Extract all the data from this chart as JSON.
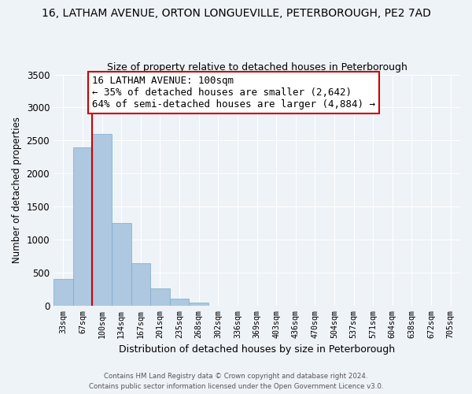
{
  "title": "16, LATHAM AVENUE, ORTON LONGUEVILLE, PETERBOROUGH, PE2 7AD",
  "subtitle": "Size of property relative to detached houses in Peterborough",
  "xlabel": "Distribution of detached houses by size in Peterborough",
  "ylabel": "Number of detached properties",
  "categories": [
    "33sqm",
    "67sqm",
    "100sqm",
    "134sqm",
    "167sqm",
    "201sqm",
    "235sqm",
    "268sqm",
    "302sqm",
    "336sqm",
    "369sqm",
    "403sqm",
    "436sqm",
    "470sqm",
    "504sqm",
    "537sqm",
    "571sqm",
    "604sqm",
    "638sqm",
    "672sqm",
    "705sqm"
  ],
  "values": [
    400,
    2400,
    2600,
    1250,
    640,
    260,
    105,
    50,
    0,
    0,
    0,
    0,
    0,
    0,
    0,
    0,
    0,
    0,
    0,
    0,
    0
  ],
  "bar_color": "#adc8e0",
  "bar_edge_color": "#7aaac8",
  "vline_color": "#cc0000",
  "vline_x_index": 2,
  "annotation_title": "16 LATHAM AVENUE: 100sqm",
  "annotation_line1": "← 35% of detached houses are smaller (2,642)",
  "annotation_line2": "64% of semi-detached houses are larger (4,884) →",
  "annotation_box_color": "#ffffff",
  "annotation_box_edge": "#cc0000",
  "ylim": [
    0,
    3500
  ],
  "yticks": [
    0,
    500,
    1000,
    1500,
    2000,
    2500,
    3000,
    3500
  ],
  "footer_line1": "Contains HM Land Registry data © Crown copyright and database right 2024.",
  "footer_line2": "Contains public sector information licensed under the Open Government Licence v3.0.",
  "background_color": "#eef3f8",
  "plot_background": "#eef3f8",
  "grid_color": "#ffffff",
  "title_fontsize": 10,
  "subtitle_fontsize": 9,
  "annotation_fontsize": 9,
  "xlabel_fontsize": 9,
  "ylabel_fontsize": 8.5
}
